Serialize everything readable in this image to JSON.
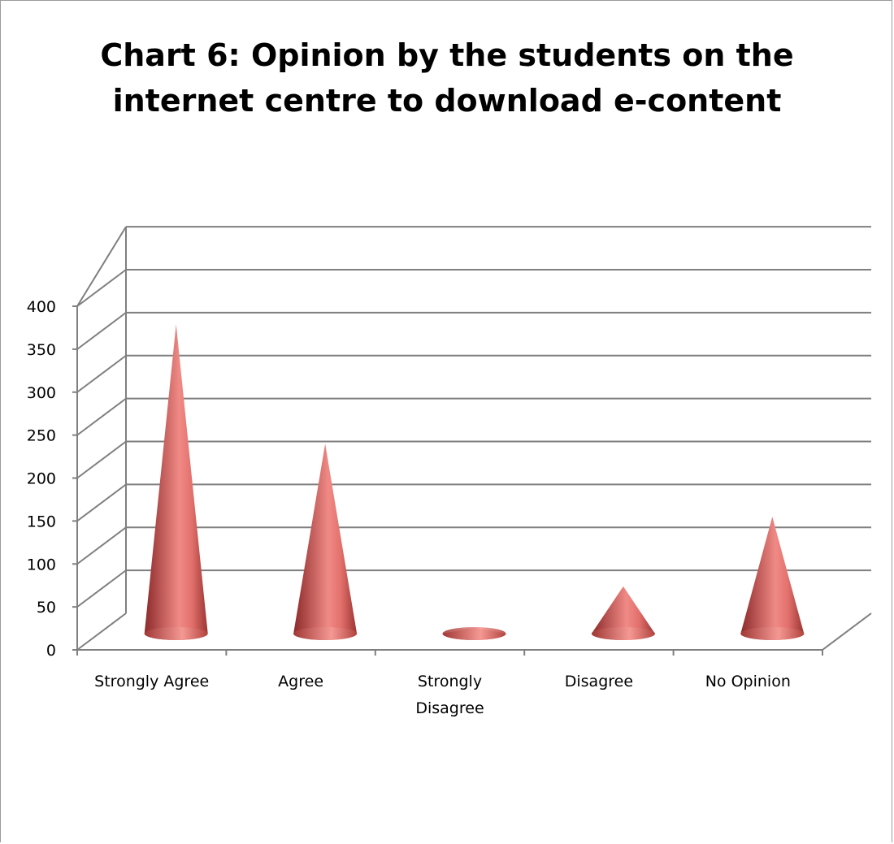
{
  "chart_data": {
    "type": "bar",
    "title_lines": [
      "Chart 6:  Opinion by the students on the",
      "internet centre to download e-content"
    ],
    "categories": [
      "Strongly Agree",
      "Agree",
      "Strongly Disagree",
      "Disagree",
      "No Opinion"
    ],
    "category_lines": [
      [
        "Strongly Agree"
      ],
      [
        "Agree"
      ],
      [
        "Strongly",
        "Disagree"
      ],
      [
        "Disagree"
      ],
      [
        "No Opinion"
      ]
    ],
    "values": [
      360,
      221,
      7,
      55,
      136
    ],
    "ylim": [
      0,
      400
    ],
    "yticks": [
      0,
      50,
      100,
      150,
      200,
      250,
      300,
      350,
      400
    ],
    "bar_shape": "cone",
    "grid": true,
    "legend": "none",
    "colors": {
      "cone_dark": "#8c2a2a",
      "cone_mid": "#c0504d",
      "cone_light": "#f08a86",
      "grid": "#7f7f7f"
    }
  }
}
